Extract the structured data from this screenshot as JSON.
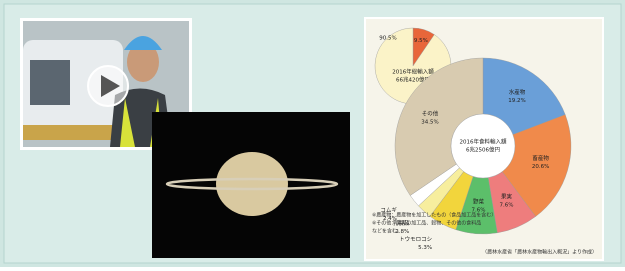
{
  "chart_data": [
    {
      "type": "pie",
      "title": [
        "2016年総輸入額",
        "66兆420億円"
      ],
      "categories": [
        null,
        null
      ],
      "values": [
        9.5,
        90.5
      ],
      "value_labels": [
        "9.5%",
        "90.5%"
      ],
      "colors": [
        "#e8663a",
        "#fbf3c8"
      ]
    },
    {
      "type": "donut",
      "title": [
        "2016年食料輸入額",
        "6兆2506億円"
      ],
      "categories": [
        "水産物",
        "畜産物",
        "果実",
        "野菜",
        "トウモロコシ",
        "乳製品",
        "コムギ",
        "その他"
      ],
      "values": [
        19.2,
        20.6,
        7.6,
        7.6,
        5.3,
        2.8,
        2.4,
        34.5
      ],
      "value_labels": [
        "19.2%",
        "20.6%",
        "7.6%",
        "7.6%",
        "5.3%",
        "2.8%",
        "2.4%",
        "34.5%"
      ],
      "colors": [
        "#6a9fd8",
        "#f08a4b",
        "#ee7d7d",
        "#5cbf6a",
        "#f2d53c",
        "#f7ee9e",
        "#ffffff",
        "#d8cbb0"
      ]
    }
  ],
  "note": [
    "※農産物：農産物を加工したもの（食品加工品を含む）",
    "※その他：果実の加工品、穀物、その他の食料品",
    "などを含む。"
  ],
  "source": "（農林水産省「農林水産物輸出入概況」より作成）"
}
